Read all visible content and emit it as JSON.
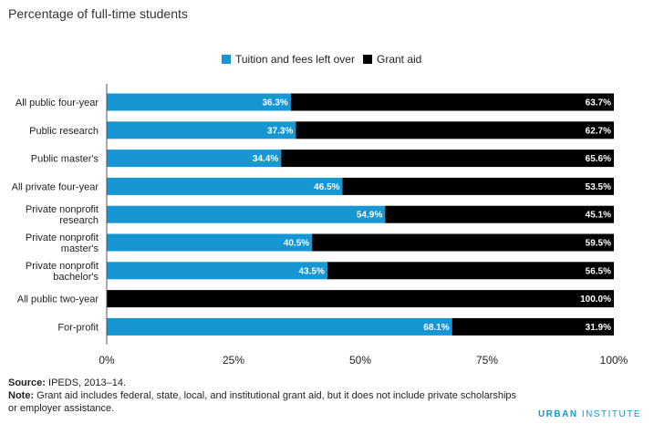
{
  "chart_data": {
    "type": "bar",
    "orientation": "horizontal",
    "stacked": true,
    "title": "Percentage of full-time students",
    "categories": [
      "All public four-year",
      "Public research",
      "Public master's",
      "All private four-year",
      "Private nonprofit research",
      "Private nonprofit master's",
      "Private nonprofit bachelor's",
      "All public two-year",
      "For-profit"
    ],
    "category_lines": [
      [
        "All public four-year"
      ],
      [
        "Public research"
      ],
      [
        "Public master's"
      ],
      [
        "All private four-year"
      ],
      [
        "Private nonprofit",
        "research"
      ],
      [
        "Private nonprofit",
        "master's"
      ],
      [
        "Private nonprofit",
        "bachelor's"
      ],
      [
        "All public two-year"
      ],
      [
        "For-profit"
      ]
    ],
    "series": [
      {
        "name": "Tuition and fees left over",
        "color": "#1696d2",
        "values": [
          36.3,
          37.3,
          34.4,
          46.5,
          54.9,
          40.5,
          43.5,
          0,
          68.1
        ],
        "labels": [
          "36.3%",
          "37.3%",
          "34.4%",
          "46.5%",
          "54.9%",
          "40.5%",
          "43.5%",
          "",
          "68.1%"
        ]
      },
      {
        "name": "Grant aid",
        "color": "#000000",
        "values": [
          63.7,
          62.7,
          65.6,
          53.5,
          45.1,
          59.5,
          56.5,
          100.0,
          31.9
        ],
        "labels": [
          "63.7%",
          "62.7%",
          "65.6%",
          "53.5%",
          "45.1%",
          "59.5%",
          "56.5%",
          "100.0%",
          "31.9%"
        ]
      }
    ],
    "x_ticks": [
      0,
      25,
      50,
      75,
      100
    ],
    "x_tick_labels": [
      "0%",
      "25%",
      "50%",
      "75%",
      "100%"
    ],
    "xlim": [
      0,
      100
    ],
    "legend_position": "top",
    "grid": false
  },
  "footer": {
    "source_label": "Source:",
    "source_text": " IPEDS, 2013–14.",
    "note_label": "Note:",
    "note_text": " Grant aid includes federal, state, local, and institutional grant aid, but it does not include private scholarships or employer assistance."
  },
  "brand": {
    "first": "URBAN",
    "second": " INSTITUTE"
  }
}
